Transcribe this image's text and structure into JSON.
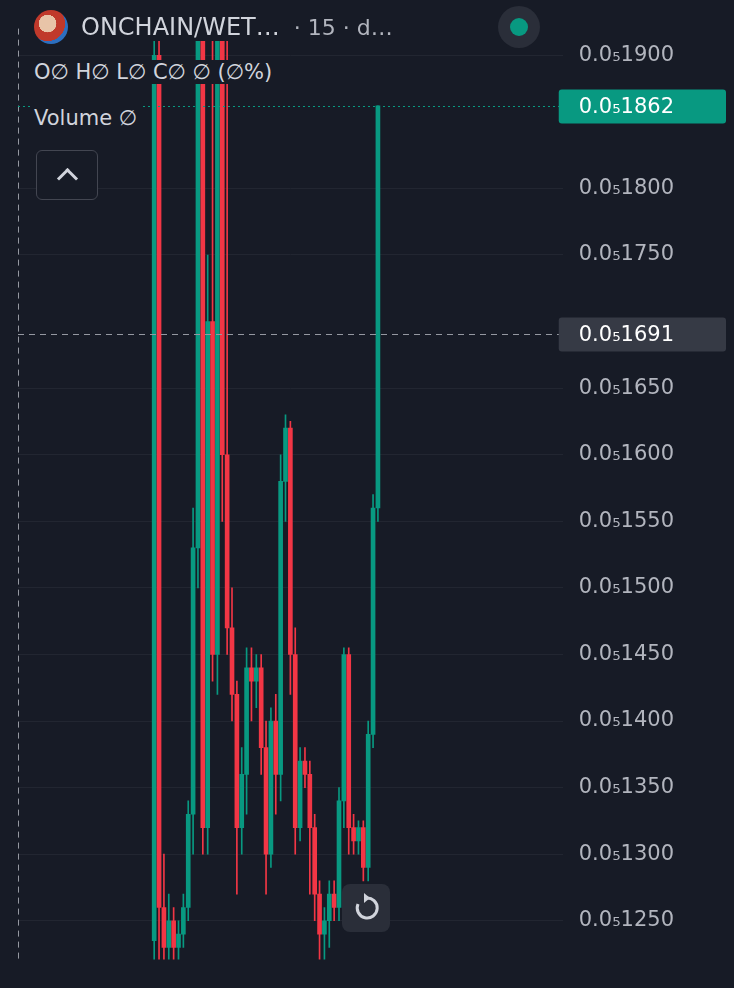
{
  "chart_data": {
    "type": "candlestick",
    "title": "ONCHAIN/WET…",
    "subtitle": "· 15 · d…",
    "annotations": [
      {
        "text": "O∅ H∅ L∅ C∅ ∅ (∅%)"
      },
      {
        "text": "Volume ∅"
      },
      {
        "value": 1.862e-06,
        "label": "0.0₅1862",
        "color": "#089981",
        "line_style": "dotted"
      },
      {
        "value": 1.691e-06,
        "label": "0.0₅1691",
        "color": "#363a45",
        "line_style": "dashed"
      }
    ],
    "x": [
      0,
      1,
      2,
      3,
      4,
      5,
      6,
      7,
      8,
      9,
      10,
      11,
      12,
      13,
      14,
      15,
      16,
      17,
      18,
      19,
      20,
      21,
      22,
      23,
      24,
      25,
      26,
      27,
      28,
      29,
      30,
      31,
      32,
      33,
      34,
      35,
      36,
      37,
      38,
      39,
      40,
      41,
      42,
      43,
      44,
      45,
      46
    ],
    "open": [
      1.235e-06,
      1.9e-06,
      1.26e-06,
      1.23e-06,
      1.25e-06,
      1.23e-06,
      1.24e-06,
      1.26e-06,
      1.33e-06,
      1.53e-06,
      1.92e-06,
      1.32e-06,
      1.7e-06,
      1.45e-06,
      1.92e-06,
      1.6e-06,
      1.47e-06,
      1.42e-06,
      1.32e-06,
      1.36e-06,
      1.44e-06,
      1.43e-06,
      1.44e-06,
      1.38e-06,
      1.3e-06,
      1.4e-06,
      1.36e-06,
      1.58e-06,
      1.62e-06,
      1.45e-06,
      1.32e-06,
      1.37e-06,
      1.36e-06,
      1.32e-06,
      1.27e-06,
      1.24e-06,
      1.25e-06,
      1.27e-06,
      1.26e-06,
      1.34e-06,
      1.45e-06,
      1.32e-06,
      1.31e-06,
      1.32e-06,
      1.29e-06,
      1.39e-06,
      1.56e-06
    ],
    "high": [
      1.95e-06,
      1.93e-06,
      1.3e-06,
      1.27e-06,
      1.26e-06,
      1.25e-06,
      1.27e-06,
      1.34e-06,
      1.56e-06,
      1.95e-06,
      1.95e-06,
      1.75e-06,
      1.93e-06,
      1.95e-06,
      1.95e-06,
      1.95e-06,
      1.5e-06,
      1.43e-06,
      1.38e-06,
      1.455e-06,
      1.455e-06,
      1.45e-06,
      1.45e-06,
      1.4e-06,
      1.41e-06,
      1.42e-06,
      1.6e-06,
      1.63e-06,
      1.625e-06,
      1.47e-06,
      1.38e-06,
      1.38e-06,
      1.37e-06,
      1.33e-06,
      1.28e-06,
      1.26e-06,
      1.28e-06,
      1.28e-06,
      1.35e-06,
      1.455e-06,
      1.455e-06,
      1.33e-06,
      1.325e-06,
      1.325e-06,
      1.4e-06,
      1.57e-06,
      1.862e-06
    ],
    "low": [
      1.21e-06,
      1.21e-06,
      1.21e-06,
      1.21e-06,
      1.21e-06,
      1.21e-06,
      1.23e-06,
      1.25e-06,
      1.3e-06,
      1.5e-06,
      1.3e-06,
      1.3e-06,
      1.43e-06,
      1.42e-06,
      1.55e-06,
      1.45e-06,
      1.4e-06,
      1.27e-06,
      1.3e-06,
      1.33e-06,
      1.4e-06,
      1.41e-06,
      1.36e-06,
      1.27e-06,
      1.29e-06,
      1.33e-06,
      1.34e-06,
      1.55e-06,
      1.42e-06,
      1.3e-06,
      1.31e-06,
      1.35e-06,
      1.27e-06,
      1.25e-06,
      1.21e-06,
      1.21e-06,
      1.23e-06,
      1.25e-06,
      1.25e-06,
      1.32e-06,
      1.3e-06,
      1.3e-06,
      1.3e-06,
      1.28e-06,
      1.28e-06,
      1.38e-06,
      1.55e-06
    ],
    "close": [
      1.9e-06,
      1.26e-06,
      1.23e-06,
      1.25e-06,
      1.23e-06,
      1.24e-06,
      1.26e-06,
      1.33e-06,
      1.53e-06,
      1.92e-06,
      1.32e-06,
      1.7e-06,
      1.45e-06,
      1.92e-06,
      1.6e-06,
      1.47e-06,
      1.42e-06,
      1.32e-06,
      1.36e-06,
      1.44e-06,
      1.43e-06,
      1.44e-06,
      1.38e-06,
      1.3e-06,
      1.4e-06,
      1.36e-06,
      1.58e-06,
      1.62e-06,
      1.45e-06,
      1.32e-06,
      1.37e-06,
      1.36e-06,
      1.32e-06,
      1.27e-06,
      1.24e-06,
      1.25e-06,
      1.27e-06,
      1.26e-06,
      1.34e-06,
      1.45e-06,
      1.32e-06,
      1.31e-06,
      1.32e-06,
      1.29e-06,
      1.39e-06,
      1.56e-06,
      1.862e-06
    ],
    "colors": [
      "#089981",
      "#f23645",
      "#f23645",
      "#089981",
      "#f23645",
      "#089981",
      "#089981",
      "#089981",
      "#089981",
      "#089981",
      "#f23645",
      "#089981",
      "#f23645",
      "#089981",
      "#f23645",
      "#f23645",
      "#f23645",
      "#f23645",
      "#089981",
      "#089981",
      "#f23645",
      "#089981",
      "#f23645",
      "#f23645",
      "#089981",
      "#f23645",
      "#089981",
      "#089981",
      "#f23645",
      "#f23645",
      "#089981",
      "#f23645",
      "#f23645",
      "#f23645",
      "#f23645",
      "#089981",
      "#089981",
      "#f23645",
      "#089981",
      "#089981",
      "#f23645",
      "#f23645",
      "#089981",
      "#f23645",
      "#089981",
      "#089981",
      "#089981"
    ],
    "xlim": [
      -28,
      84
    ],
    "ylim": [
      1.221e-06,
      1.92e-06
    ],
    "yticks": [
      {
        "value": 1.25e-06,
        "label": "0.0₅1250"
      },
      {
        "value": 1.3e-06,
        "label": "0.0₅1300"
      },
      {
        "value": 1.35e-06,
        "label": "0.0₅1350"
      },
      {
        "value": 1.4e-06,
        "label": "0.0₅1400"
      },
      {
        "value": 1.45e-06,
        "label": "0.0₅1450"
      },
      {
        "value": 1.5e-06,
        "label": "0.0₅1500"
      },
      {
        "value": 1.55e-06,
        "label": "0.0₅1550"
      },
      {
        "value": 1.6e-06,
        "label": "0.0₅1600"
      },
      {
        "value": 1.65e-06,
        "label": "0.0₅1650"
      },
      {
        "value": 1.75e-06,
        "label": "0.0₅1750"
      },
      {
        "value": 1.8e-06,
        "label": "0.0₅1800"
      },
      {
        "value": 1.9e-06,
        "label": "0.0₅1900"
      }
    ],
    "grid": true,
    "tick_labels": "y"
  }
}
